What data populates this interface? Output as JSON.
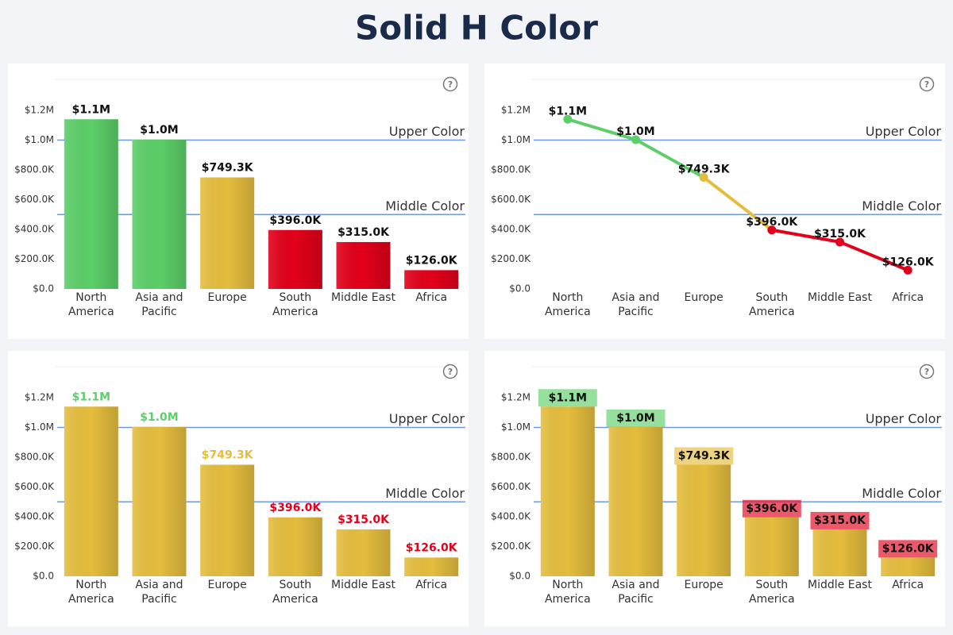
{
  "title": "Solid H Color",
  "chart_data": [
    {
      "type": "bar",
      "color_target": "bar",
      "categories": [
        "North America",
        "Asia and Pacific",
        "Europe",
        "South America",
        "Middle East",
        "Africa"
      ],
      "values": [
        1140000,
        1003000,
        749300,
        396000,
        315000,
        126000
      ],
      "value_labels": [
        "$1.1M",
        "$1.0M",
        "$749.3K",
        "$396.0K",
        "$315.0K",
        "$126.0K"
      ],
      "ylim": [
        0,
        1200000
      ],
      "yticks": [
        {
          "value": 0,
          "label": "$0.0"
        },
        {
          "value": 200000,
          "label": "$200.0K"
        },
        {
          "value": 400000,
          "label": "$400.0K"
        },
        {
          "value": 600000,
          "label": "$600.0K"
        },
        {
          "value": 800000,
          "label": "$800.0K"
        },
        {
          "value": 1000000,
          "label": "$1.0M"
        },
        {
          "value": 1200000,
          "label": "$1.2M"
        }
      ],
      "reference_lines": [
        {
          "value": 1000000,
          "label": "Upper Color",
          "color": "#5ccf69"
        },
        {
          "value": 500000,
          "label": "Middle Color",
          "color": "#e5bd3e"
        }
      ],
      "lower_color": "#e2001a",
      "grid": false
    },
    {
      "type": "line",
      "color_target": "line",
      "categories": [
        "North America",
        "Asia and Pacific",
        "Europe",
        "South America",
        "Middle East",
        "Africa"
      ],
      "values": [
        1140000,
        1003000,
        749300,
        396000,
        315000,
        126000
      ],
      "value_labels": [
        "$1.1M",
        "$1.0M",
        "$749.3K",
        "$396.0K",
        "$315.0K",
        "$126.0K"
      ],
      "ylim": [
        0,
        1200000
      ],
      "yticks": [
        {
          "value": 0,
          "label": "$0.0"
        },
        {
          "value": 200000,
          "label": "$200.0K"
        },
        {
          "value": 400000,
          "label": "$400.0K"
        },
        {
          "value": 600000,
          "label": "$600.0K"
        },
        {
          "value": 800000,
          "label": "$800.0K"
        },
        {
          "value": 1000000,
          "label": "$1.0M"
        },
        {
          "value": 1200000,
          "label": "$1.2M"
        }
      ],
      "reference_lines": [
        {
          "value": 1000000,
          "label": "Upper Color",
          "color": "#5ccf69"
        },
        {
          "value": 500000,
          "label": "Middle Color",
          "color": "#e5bd3e"
        }
      ],
      "lower_color": "#e2001a",
      "grid": false
    },
    {
      "type": "bar",
      "color_target": "label",
      "color": "#e5bd3e",
      "categories": [
        "North America",
        "Asia and Pacific",
        "Europe",
        "South America",
        "Middle East",
        "Africa"
      ],
      "values": [
        1140000,
        1003000,
        749300,
        396000,
        315000,
        126000
      ],
      "value_labels": [
        "$1.1M",
        "$1.0M",
        "$749.3K",
        "$396.0K",
        "$315.0K",
        "$126.0K"
      ],
      "ylim": [
        0,
        1200000
      ],
      "yticks": [
        {
          "value": 0,
          "label": "$0.0"
        },
        {
          "value": 200000,
          "label": "$200.0K"
        },
        {
          "value": 400000,
          "label": "$400.0K"
        },
        {
          "value": 600000,
          "label": "$600.0K"
        },
        {
          "value": 800000,
          "label": "$800.0K"
        },
        {
          "value": 1000000,
          "label": "$1.0M"
        },
        {
          "value": 1200000,
          "label": "$1.2M"
        }
      ],
      "reference_lines": [
        {
          "value": 1000000,
          "label": "Upper Color",
          "color": "#5ccf69"
        },
        {
          "value": 500000,
          "label": "Middle Color",
          "color": "#e5bd3e"
        }
      ],
      "lower_color": "#e2001a",
      "grid": false
    },
    {
      "type": "bar",
      "color_target": "label-background",
      "color": "#e5bd3e",
      "categories": [
        "North America",
        "Asia and Pacific",
        "Europe",
        "South America",
        "Middle East",
        "Africa"
      ],
      "values": [
        1140000,
        1003000,
        749300,
        396000,
        315000,
        126000
      ],
      "value_labels": [
        "$1.1M",
        "$1.0M",
        "$749.3K",
        "$396.0K",
        "$315.0K",
        "$126.0K"
      ],
      "ylim": [
        0,
        1200000
      ],
      "yticks": [
        {
          "value": 0,
          "label": "$0.0"
        },
        {
          "value": 200000,
          "label": "$200.0K"
        },
        {
          "value": 400000,
          "label": "$400.0K"
        },
        {
          "value": 600000,
          "label": "$600.0K"
        },
        {
          "value": 800000,
          "label": "$800.0K"
        },
        {
          "value": 1000000,
          "label": "$1.0M"
        },
        {
          "value": 1200000,
          "label": "$1.2M"
        }
      ],
      "reference_lines": [
        {
          "value": 1000000,
          "label": "Upper Color",
          "color": "#5ccf69"
        },
        {
          "value": 500000,
          "label": "Middle Color",
          "color": "#e5bd3e"
        }
      ],
      "lower_color": "#e2001a",
      "grid": false
    }
  ]
}
